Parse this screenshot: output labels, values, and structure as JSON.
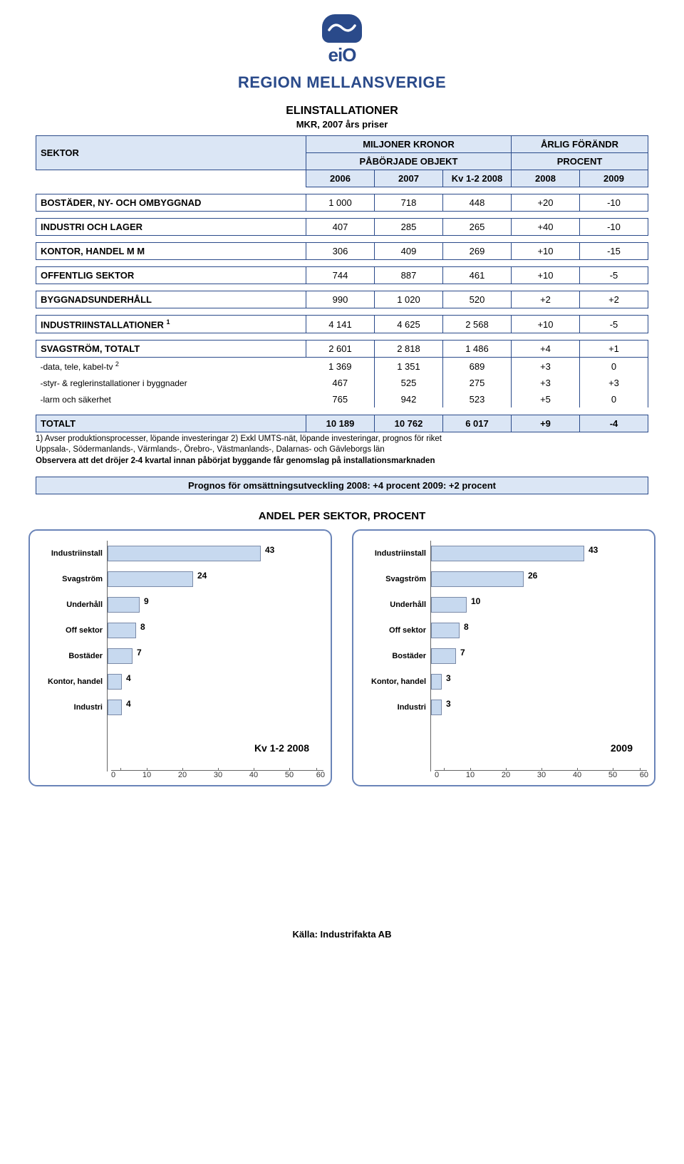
{
  "logo_text": "eiO",
  "region_title": "REGION MELLANSVERIGE",
  "doc_title": "ELINSTALLATIONER",
  "doc_sub": "MKR, 2007 års priser",
  "header": {
    "sector": "SEKTOR",
    "miljoner": "MILJONER KRONOR",
    "arlig": "ÅRLIG FÖRÄNDR",
    "paborjade": "PÅBÖRJADE OBJEKT",
    "procent": "PROCENT",
    "years": [
      "2006",
      "2007",
      "Kv 1-2 2008",
      "2008",
      "2009"
    ]
  },
  "rows": [
    {
      "label": "BOSTÄDER, NY- OCH OMBYGGNAD",
      "cells": [
        "1 000",
        "718",
        "448",
        "+20",
        "-10"
      ],
      "bold": true
    },
    {
      "label": "INDUSTRI OCH LAGER",
      "cells": [
        "407",
        "285",
        "265",
        "+40",
        "-10"
      ],
      "bold": true
    },
    {
      "label": "KONTOR, HANDEL M M",
      "cells": [
        "306",
        "409",
        "269",
        "+10",
        "-15"
      ],
      "bold": true
    },
    {
      "label": "OFFENTLIG SEKTOR",
      "cells": [
        "744",
        "887",
        "461",
        "+10",
        "-5"
      ],
      "bold": true
    },
    {
      "label": "BYGGNADSUNDERHÅLL",
      "cells": [
        "990",
        "1 020",
        "520",
        "+2",
        "+2"
      ],
      "bold": true
    },
    {
      "label": "INDUSTRIINSTALLATIONER ",
      "sup": "1",
      "cells": [
        "4 141",
        "4 625",
        "2 568",
        "+10",
        "-5"
      ],
      "bold": true
    },
    {
      "label": "SVAGSTRÖM, TOTALT",
      "cells": [
        "2 601",
        "2 818",
        "1 486",
        "+4",
        "+1"
      ],
      "bold": true
    },
    {
      "label": "-data, tele, kabel-tv ",
      "sup": "2",
      "cells": [
        "1 369",
        "1 351",
        "689",
        "+3",
        "0"
      ],
      "sub": true
    },
    {
      "label": "-styr- & reglerinstallationer i byggnader",
      "cells": [
        "467",
        "525",
        "275",
        "+3",
        "+3"
      ],
      "sub": true
    },
    {
      "label": "-larm och säkerhet",
      "cells": [
        "765",
        "942",
        "523",
        "+5",
        "0"
      ],
      "sub": true
    }
  ],
  "total": {
    "label": "TOTALT",
    "cells": [
      "10 189",
      "10 762",
      "6 017",
      "+9",
      "-4"
    ]
  },
  "footnote1": "1) Avser produktionsprocesser, löpande investeringar  2) Exkl UMTS-nät, löpande investeringar, prognos för riket",
  "footnote2": "Uppsala-, Södermanlands-, Värmlands-, Örebro-, Västmanlands-, Dalarnas- och Gävleborgs län",
  "footnote3": "Observera att det dröjer 2-4 kvartal innan påbörjat byggande får genomslag på installationsmarknaden",
  "prognos": "Prognos för omsättningsutveckling 2008: +4 procent   2009: +2 procent",
  "andel_title": "ANDEL PER SEKTOR, PROCENT",
  "chart_colors": {
    "bar_fill": "#c7d9ef",
    "bar_border": "#7a8aa8",
    "panel_border": "#6a84b8"
  },
  "chart_axis": {
    "min": 0,
    "max": 60,
    "step": 10
  },
  "chart_left": {
    "caption": "Kv 1-2 2008",
    "categories": [
      "Industriinstall",
      "Svagström",
      "Underhåll",
      "Off sektor",
      "Bostäder",
      "Kontor, handel",
      "Industri"
    ],
    "values": [
      43,
      24,
      9,
      8,
      7,
      4,
      4
    ]
  },
  "chart_right": {
    "caption": "2009",
    "categories": [
      "Industriinstall",
      "Svagström",
      "Underhåll",
      "Off sektor",
      "Bostäder",
      "Kontor, handel",
      "Industri"
    ],
    "values": [
      43,
      26,
      10,
      8,
      7,
      3,
      3
    ]
  },
  "source": "Källa: Industrifakta AB"
}
